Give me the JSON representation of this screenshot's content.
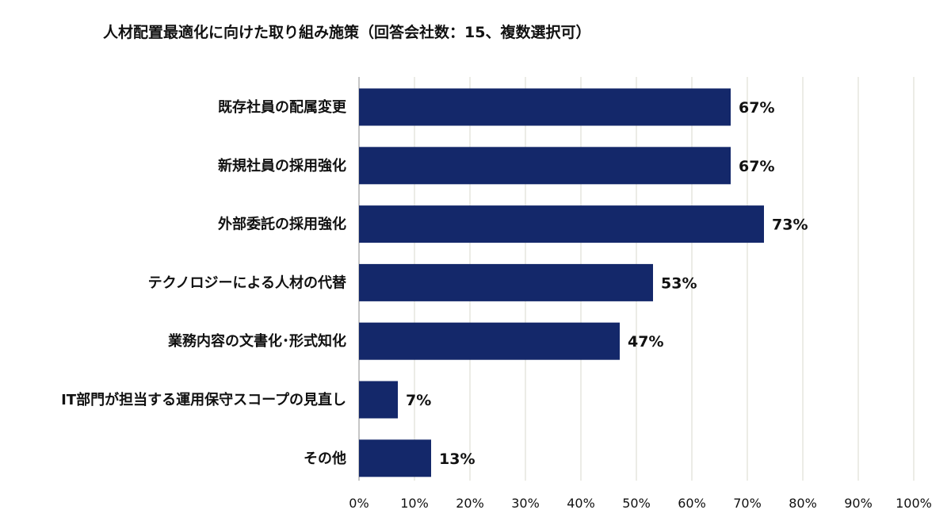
{
  "chart_data": {
    "type": "bar",
    "orientation": "horizontal",
    "title": "人材配置最適化に向けた取り組み施策（回答会社数：15、複数選択可）",
    "categories": [
      "既存社員の配属変更",
      "新規社員の採用強化",
      "外部委託の採用強化",
      "テクノロジーによる人材の代替",
      "業務内容の文書化･形式知化",
      "IT部門が担当する運用保守スコープの見直し",
      "その他"
    ],
    "values": [
      67,
      67,
      73,
      53,
      47,
      7,
      13
    ],
    "value_labels": [
      "67%",
      "67%",
      "73%",
      "53%",
      "47%",
      "7%",
      "13%"
    ],
    "xlim": [
      0,
      100
    ],
    "ticks": [
      "0%",
      "10%",
      "20%",
      "30%",
      "40%",
      "50%",
      "60%",
      "70%",
      "80%",
      "90%",
      "100%"
    ],
    "grid": true,
    "legend": "none",
    "bar_color": "#14286a",
    "grid_color": "#d8d8cc",
    "axis_color": "#8c8c8c"
  }
}
